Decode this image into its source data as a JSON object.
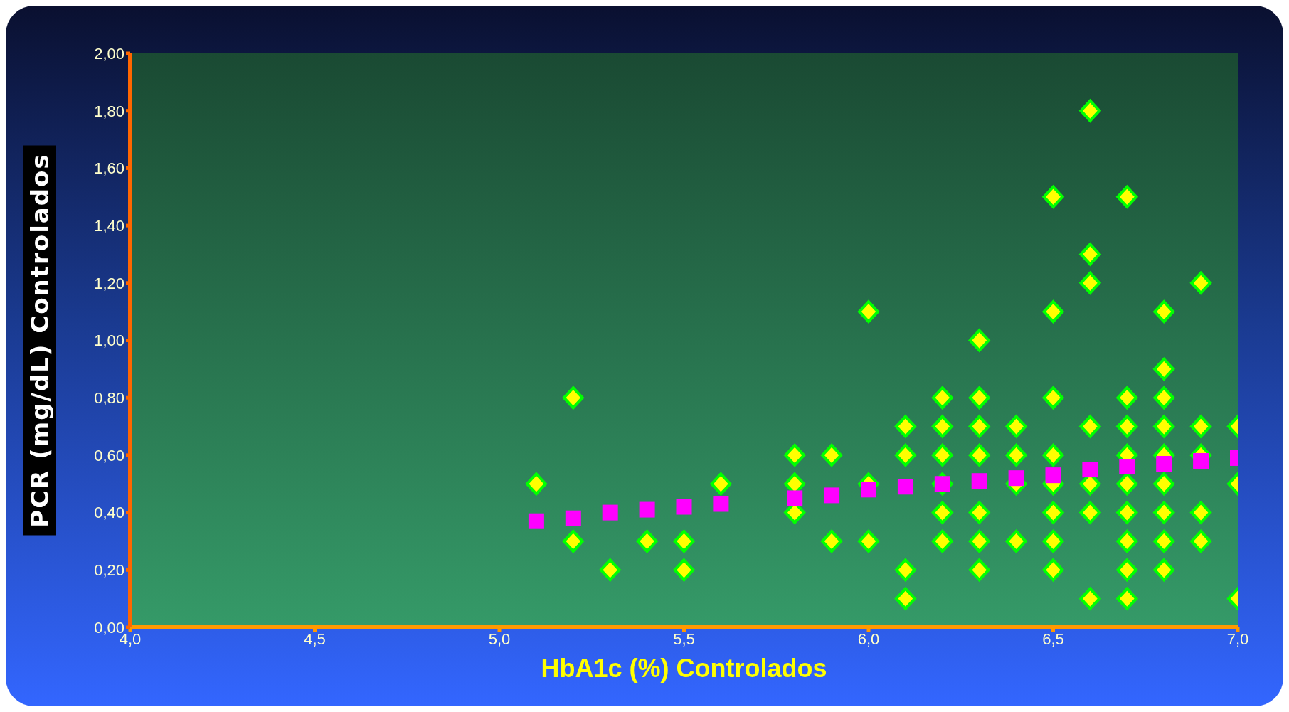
{
  "chart_data": {
    "type": "scatter",
    "xlabel": "HbA1c (%) Controlados",
    "ylabel": "PCR (mg/dL) Controlados",
    "xlim": [
      4,
      7
    ],
    "xticks": [
      {
        "value": 4,
        "label": "4,0"
      },
      {
        "value": 4.5,
        "label": "4,5"
      },
      {
        "value": 5,
        "label": "5,0"
      },
      {
        "value": 5.5,
        "label": "5,5"
      },
      {
        "value": 6,
        "label": "6,0"
      },
      {
        "value": 6.5,
        "label": "6,5"
      },
      {
        "value": 7,
        "label": "7,0"
      }
    ],
    "ylim": [
      0,
      2
    ],
    "yticks": [
      {
        "value": 0,
        "label": "0,00"
      },
      {
        "value": 0.2,
        "label": "0,20"
      },
      {
        "value": 0.4,
        "label": "0,40"
      },
      {
        "value": 0.6,
        "label": "0,60"
      },
      {
        "value": 0.8,
        "label": "0,80"
      },
      {
        "value": 1,
        "label": "1,00"
      },
      {
        "value": 1.2,
        "label": "1,20"
      },
      {
        "value": 1.4,
        "label": "1,40"
      },
      {
        "value": 1.6,
        "label": "1,60"
      },
      {
        "value": 1.8,
        "label": "1,80"
      },
      {
        "value": 2,
        "label": "2,00"
      }
    ],
    "grid": false,
    "legend": false,
    "series": [
      {
        "marker": "diamond",
        "color": "#ffff00",
        "x": [
          5.1,
          5.2,
          5.2,
          5.3,
          5.4,
          5.5,
          5.5,
          5.6,
          5.8,
          5.8,
          5.8,
          5.9,
          5.9,
          6.0,
          6.0,
          6.0,
          6.1,
          6.1,
          6.1,
          6.1,
          6.2,
          6.2,
          6.2,
          6.2,
          6.2,
          6.2,
          6.3,
          6.3,
          6.3,
          6.3,
          6.3,
          6.3,
          6.3,
          6.4,
          6.4,
          6.4,
          6.4,
          6.5,
          6.5,
          6.5,
          6.5,
          6.5,
          6.5,
          6.5,
          6.5,
          6.6,
          6.6,
          6.6,
          6.6,
          6.6,
          6.6,
          6.6,
          6.7,
          6.7,
          6.7,
          6.7,
          6.7,
          6.7,
          6.7,
          6.7,
          6.7,
          6.8,
          6.8,
          6.8,
          6.8,
          6.8,
          6.8,
          6.8,
          6.8,
          6.8,
          6.9,
          6.9,
          6.9,
          6.9,
          6.9,
          7.0,
          7.0,
          7.0
        ],
        "values": [
          0.5,
          0.8,
          0.3,
          0.2,
          0.3,
          0.3,
          0.2,
          0.5,
          0.6,
          0.5,
          0.4,
          0.6,
          0.3,
          1.1,
          0.5,
          0.3,
          0.7,
          0.6,
          0.2,
          0.1,
          0.8,
          0.7,
          0.6,
          0.5,
          0.4,
          0.3,
          1.0,
          0.8,
          0.7,
          0.6,
          0.4,
          0.3,
          0.2,
          0.7,
          0.6,
          0.5,
          0.3,
          1.5,
          1.1,
          0.8,
          0.6,
          0.5,
          0.4,
          0.3,
          0.2,
          1.8,
          1.3,
          1.2,
          0.7,
          0.5,
          0.4,
          0.1,
          1.5,
          0.8,
          0.7,
          0.6,
          0.5,
          0.4,
          0.3,
          0.2,
          0.1,
          1.1,
          0.9,
          0.8,
          0.7,
          0.6,
          0.5,
          0.4,
          0.3,
          0.2,
          1.2,
          0.7,
          0.6,
          0.4,
          0.3,
          0.7,
          0.5,
          0.1
        ]
      },
      {
        "marker": "square",
        "color": "#ff00ff",
        "x": [
          5.1,
          5.2,
          5.3,
          5.4,
          5.5,
          5.6,
          5.8,
          5.9,
          6.0,
          6.1,
          6.2,
          6.3,
          6.4,
          6.5,
          6.6,
          6.7,
          6.8,
          6.9,
          7.0
        ],
        "values": [
          0.37,
          0.38,
          0.4,
          0.41,
          0.42,
          0.43,
          0.45,
          0.46,
          0.48,
          0.49,
          0.5,
          0.51,
          0.52,
          0.53,
          0.55,
          0.56,
          0.57,
          0.58,
          0.59
        ]
      }
    ]
  }
}
